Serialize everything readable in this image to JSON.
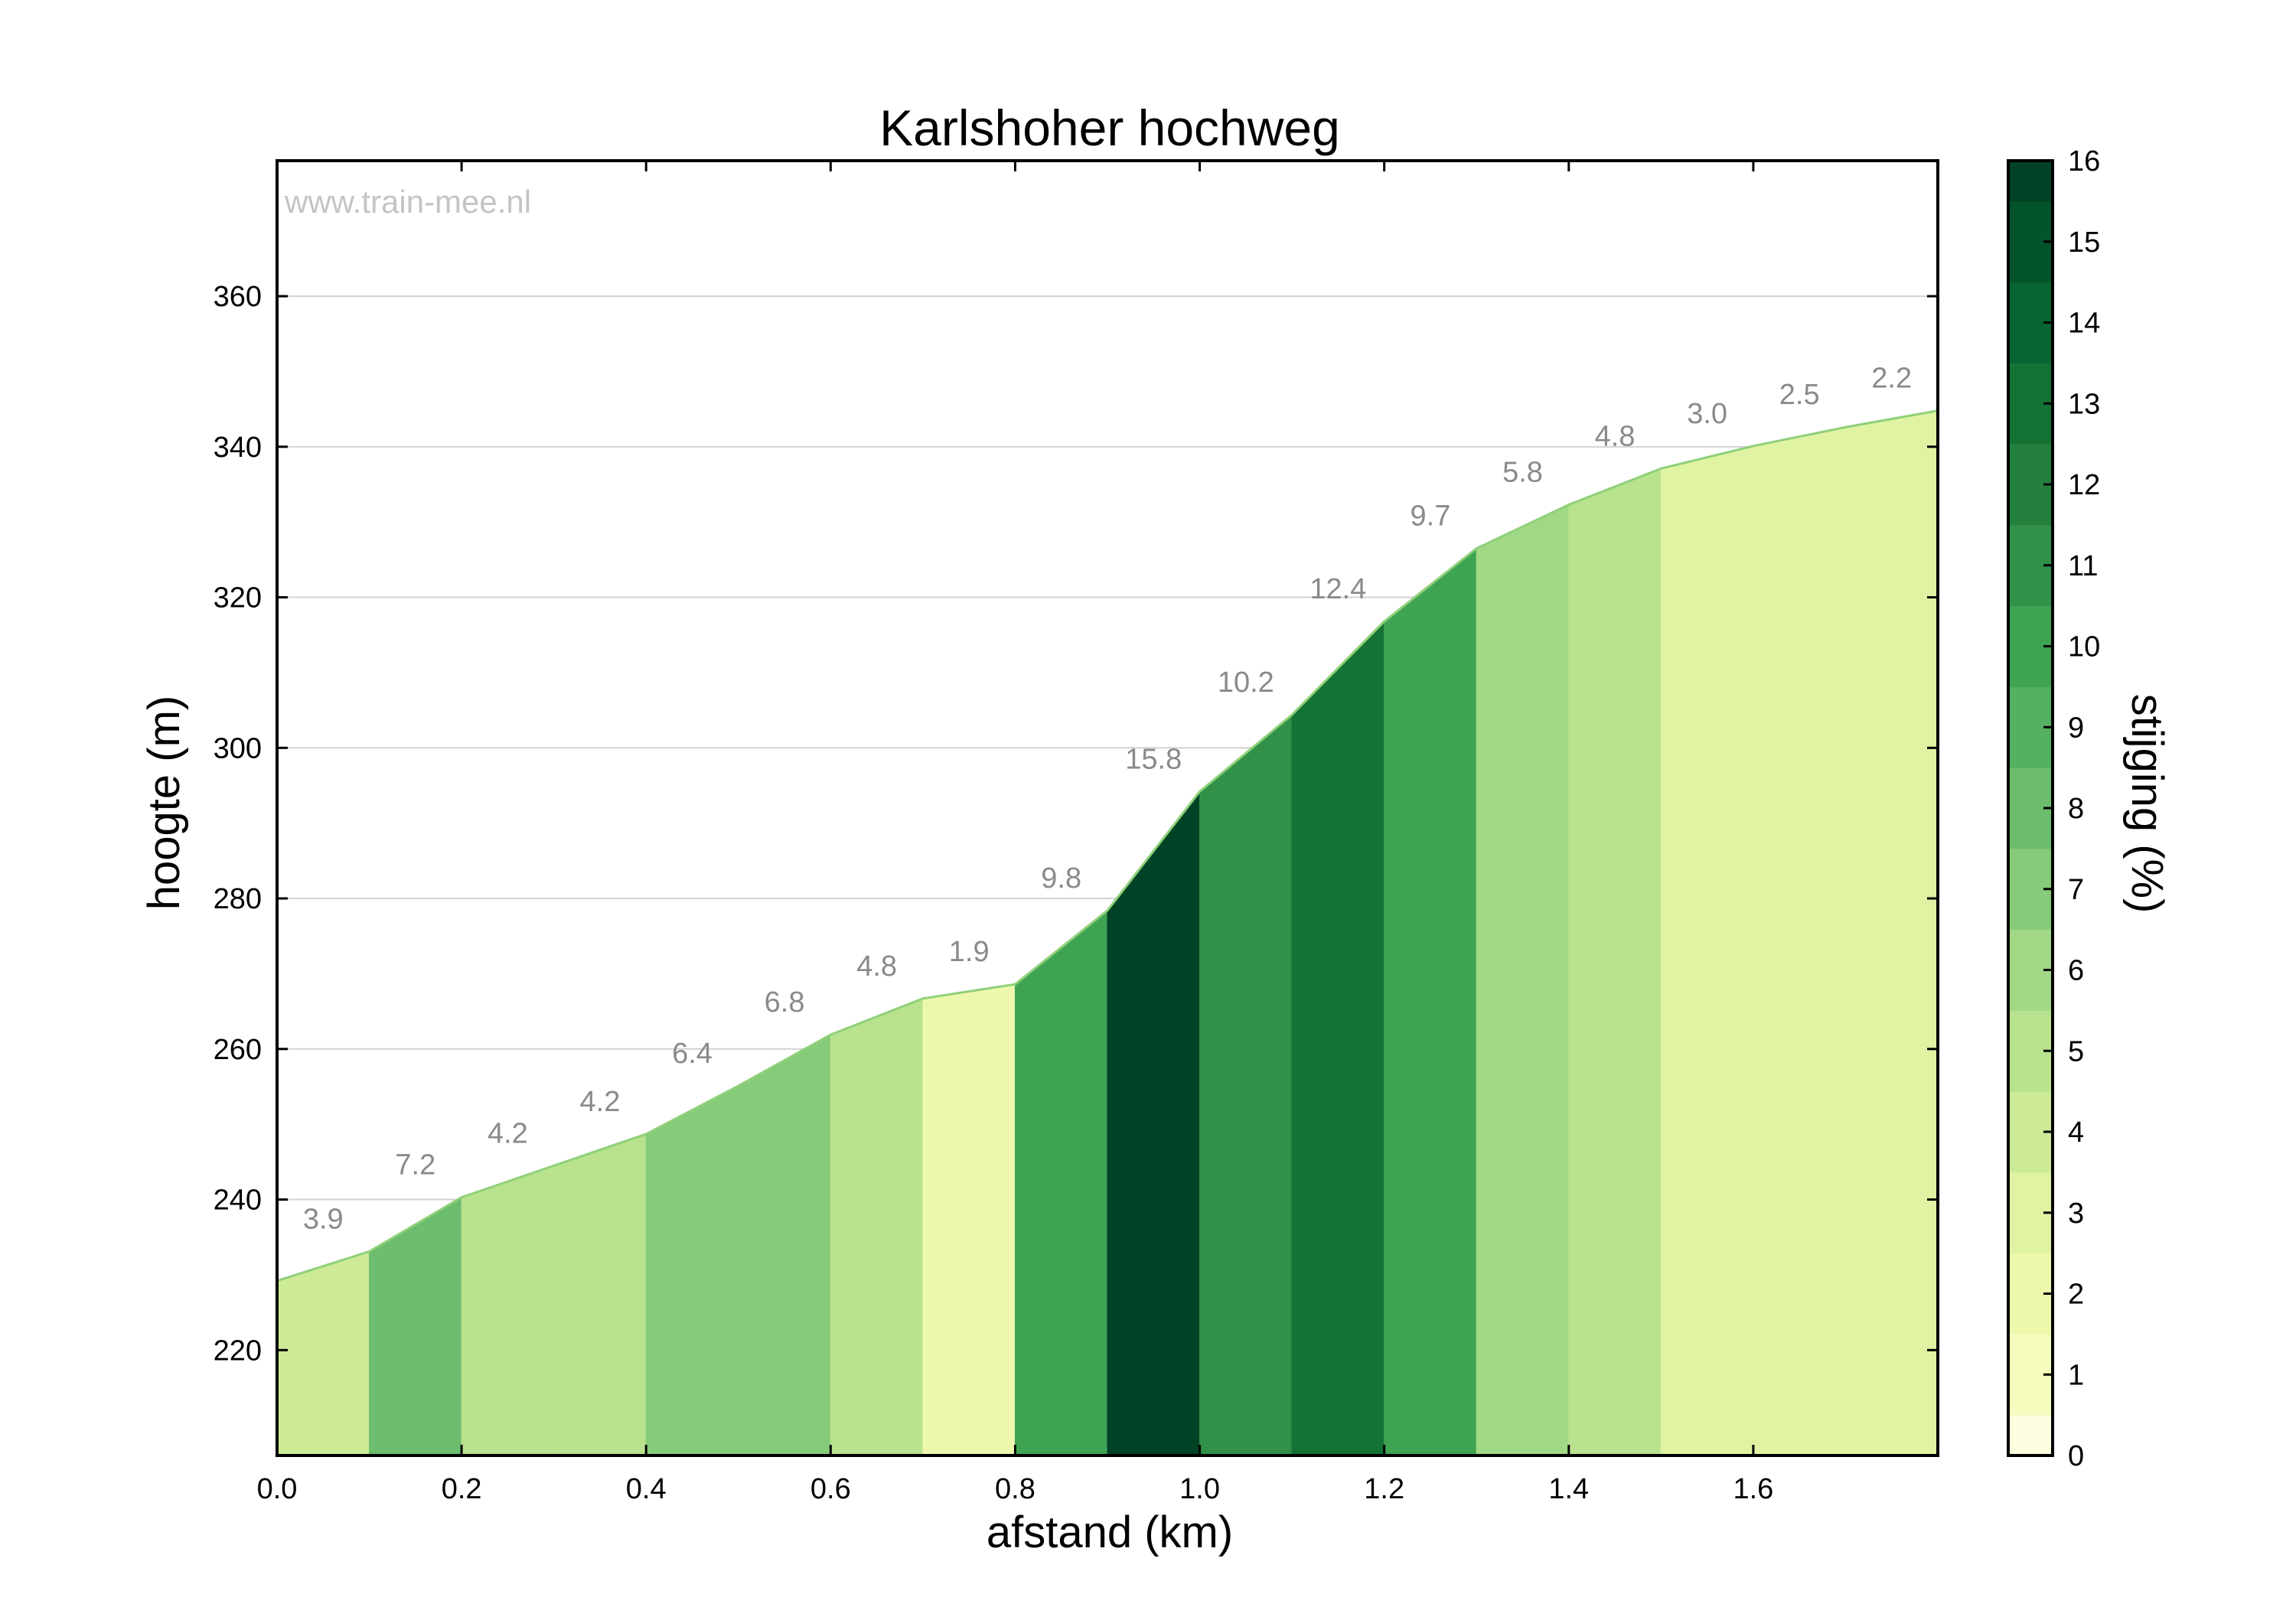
{
  "chart_data": {
    "type": "area",
    "title": "Karlshoher hochweg",
    "watermark": "www.train-mee.nl",
    "xlabel": "afstand (km)",
    "ylabel": "hoogte (m)",
    "xlim": [
      0,
      1.8
    ],
    "ylim": [
      206,
      378
    ],
    "x_ticks": [
      "0.0",
      "0.2",
      "0.4",
      "0.6",
      "0.8",
      "1.0",
      "1.2",
      "1.4",
      "1.6"
    ],
    "y_ticks": [
      "220",
      "240",
      "260",
      "280",
      "300",
      "320",
      "340",
      "360"
    ],
    "grid": true,
    "profile": {
      "x": [
        0.0,
        0.1,
        0.2,
        0.3,
        0.4,
        0.5,
        0.6,
        0.7,
        0.8,
        0.9,
        1.0,
        1.1,
        1.2,
        1.3,
        1.4,
        1.5,
        1.6,
        1.7,
        1.8
      ],
      "y": [
        229.2,
        233.1,
        240.3,
        244.5,
        248.7,
        255.1,
        261.9,
        266.7,
        268.6,
        278.4,
        294.2,
        304.4,
        316.8,
        326.5,
        332.3,
        337.1,
        340.1,
        342.6,
        344.8
      ]
    },
    "segments": [
      {
        "grade": 3.9,
        "label": "3.9"
      },
      {
        "grade": 7.2,
        "label": "7.2"
      },
      {
        "grade": 4.2,
        "label": "4.2"
      },
      {
        "grade": 4.2,
        "label": "4.2"
      },
      {
        "grade": 6.4,
        "label": "6.4"
      },
      {
        "grade": 6.8,
        "label": "6.8"
      },
      {
        "grade": 4.8,
        "label": "4.8"
      },
      {
        "grade": 1.9,
        "label": "1.9"
      },
      {
        "grade": 9.8,
        "label": "9.8"
      },
      {
        "grade": 15.8,
        "label": "15.8"
      },
      {
        "grade": 10.2,
        "label": "10.2"
      },
      {
        "grade": 12.4,
        "label": "12.4"
      },
      {
        "grade": 9.7,
        "label": "9.7"
      },
      {
        "grade": 5.8,
        "label": "5.8"
      },
      {
        "grade": 4.8,
        "label": "4.8"
      },
      {
        "grade": 3.0,
        "label": "3.0"
      },
      {
        "grade": 2.5,
        "label": "2.5"
      },
      {
        "grade": 2.2,
        "label": "2.2"
      }
    ],
    "colorbar": {
      "label": "stijging (%)",
      "ticks": [
        "0",
        "1",
        "2",
        "3",
        "4",
        "5",
        "6",
        "7",
        "8",
        "9",
        "10",
        "11",
        "12",
        "13",
        "14",
        "15",
        "16"
      ],
      "range": [
        0,
        16
      ],
      "colors": [
        "#fdfde0",
        "#f6fbbe",
        "#eef8ad",
        "#e0f3a2",
        "#cdeb97",
        "#b8e28d",
        "#a1d885",
        "#86cb79",
        "#6cbd6e",
        "#54b062",
        "#3fa354",
        "#319148",
        "#24803e",
        "#147235",
        "#086430",
        "#03532b",
        "#004226"
      ]
    }
  }
}
